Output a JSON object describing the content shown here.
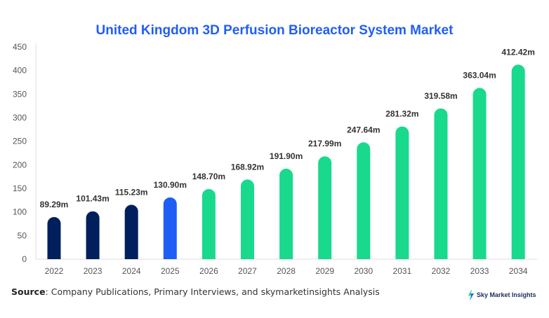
{
  "chart_data": {
    "type": "bar",
    "title": "United Kingdom 3D Perfusion Bioreactor System Market",
    "categories": [
      "2022",
      "2023",
      "2024",
      "2025",
      "2026",
      "2027",
      "2028",
      "2029",
      "2030",
      "2031",
      "2032",
      "2033",
      "2034"
    ],
    "values": [
      89.29,
      101.43,
      115.23,
      130.9,
      148.7,
      168.92,
      191.9,
      217.99,
      247.64,
      281.32,
      319.58,
      363.04,
      412.42
    ],
    "data_labels": [
      "89.29m",
      "101.43m",
      "115.23m",
      "130.90m",
      "148.70m",
      "168.92m",
      "191.90m",
      "217.99m",
      "247.64m",
      "281.32m",
      "319.58m",
      "363.04m",
      "412.42m"
    ],
    "bar_colors": [
      "#001f5c",
      "#001f5c",
      "#001f5c",
      "#1f5ef5",
      "#19d98c",
      "#19d98c",
      "#19d98c",
      "#19d98c",
      "#19d98c",
      "#19d98c",
      "#19d98c",
      "#19d98c",
      "#19d98c"
    ],
    "ylim": [
      0,
      450
    ],
    "yticks": [
      0,
      50,
      100,
      150,
      200,
      250,
      300,
      350,
      400,
      450
    ],
    "xlabel": "",
    "ylabel": "",
    "grid": false
  },
  "footer": {
    "source_label": "Source",
    "source_text": ": Company Publications, Primary Interviews, and skymarketinsights Analysis",
    "logo_text": "Sky Market Insights"
  }
}
